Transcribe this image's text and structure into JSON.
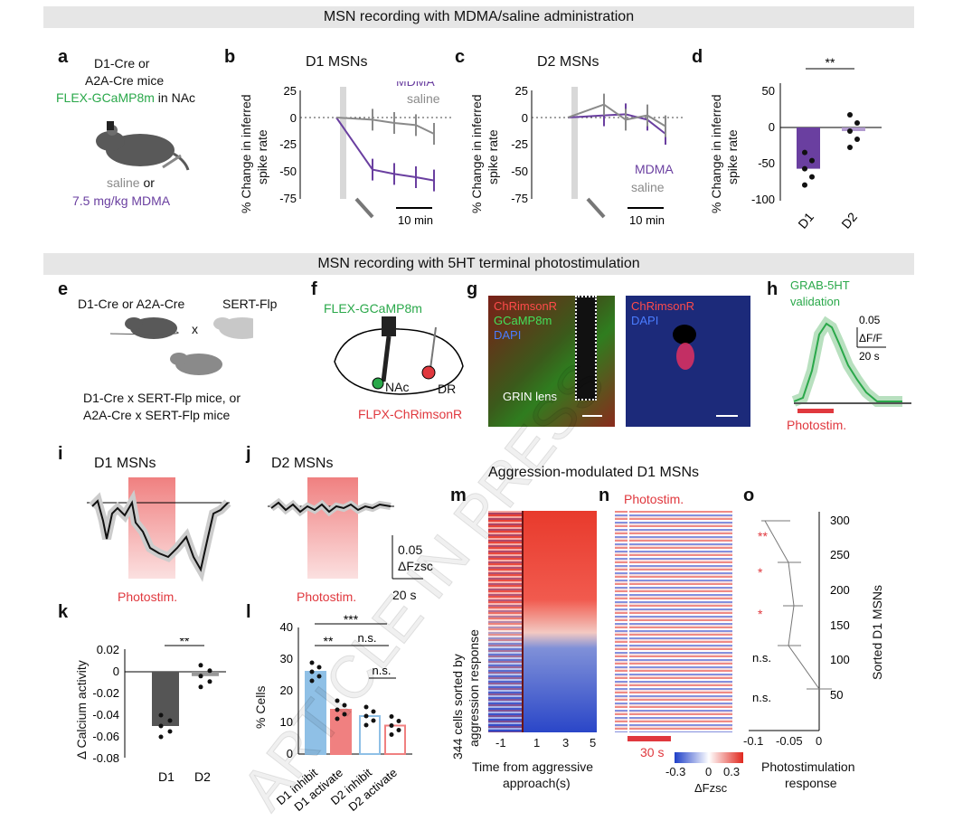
{
  "banners": {
    "top": "MSN recording with MDMA/saline administration",
    "middle": "MSN recording with 5HT terminal photostimulation"
  },
  "panel_letters": [
    "a",
    "b",
    "c",
    "d",
    "e",
    "f",
    "g",
    "h",
    "i",
    "j",
    "k",
    "l",
    "m",
    "n",
    "o"
  ],
  "panel_a": {
    "line1": "D1-Cre or",
    "line2": "A2A-Cre mice",
    "virus": "FLEX-GCaMP8m",
    "virus_suffix": " in NAc",
    "saline": "saline",
    "or": " or",
    "mdma_dose": "7.5 mg/kg MDMA"
  },
  "panel_b": {
    "title": "D1 MSNs",
    "ylabel1": "% Change in inferred",
    "ylabel2": "spike rate",
    "yticks": [
      "25",
      "0",
      "-25",
      "-50",
      "-75"
    ],
    "legend_mdma": "MDMA",
    "legend_saline": "saline",
    "scalebar": "10 min"
  },
  "panel_c": {
    "title": "D2 MSNs",
    "ylabel1": "% Change in inferred",
    "ylabel2": "spike rate",
    "yticks": [
      "25",
      "0",
      "-25",
      "-50",
      "-75"
    ],
    "legend_mdma": "MDMA",
    "legend_saline": "saline",
    "scalebar": "10 min"
  },
  "panel_d": {
    "ylabel1": "% Change in inferred",
    "ylabel2": "spike rate",
    "yticks": [
      "50",
      "0",
      "-50",
      "-100"
    ],
    "xticks": [
      "D1",
      "D2"
    ],
    "sig": "**"
  },
  "panel_e": {
    "left": "D1-Cre or A2A-Cre",
    "right": "SERT-Flp",
    "cross": "x",
    "cap1": "D1-Cre x SERT-Flp mice, or",
    "cap2": "A2A-Cre x SERT-Flp mice"
  },
  "panel_f": {
    "virus_top": "FLEX-GCaMP8m",
    "nac": "NAc",
    "dr": "DR",
    "virus_bottom": "FLPX-ChRimsonR"
  },
  "panel_g": {
    "left_l1": "ChRimsonR",
    "left_l2": "GCaMP8m",
    "left_l3": "DAPI",
    "grin": "GRIN lens",
    "right_l1": "ChRimsonR",
    "right_l2": "DAPI"
  },
  "panel_h": {
    "title1": "GRAB-5HT",
    "title2": "validation",
    "scale_y": "0.05",
    "scale_y_unit": "ΔF/F",
    "scale_x": "20 s",
    "stim": "Photostim."
  },
  "panel_i": {
    "title": "D1 MSNs",
    "stim": "Photostim."
  },
  "panel_j": {
    "title": "D2 MSNs",
    "stim": "Photostim.",
    "scale_y": "0.05",
    "scale_y_unit": "ΔFzsc",
    "scale_x": "20 s"
  },
  "panel_k": {
    "ylabel": "Δ Calcium activity",
    "yticks": [
      "0.02",
      "0",
      "-0.02",
      "-0.04",
      "-0.06",
      "-0.08"
    ],
    "xticks": [
      "D1",
      "D2"
    ],
    "sig": "**"
  },
  "panel_l": {
    "ylabel": "% Cells",
    "yticks": [
      "40",
      "30",
      "20",
      "10",
      "0"
    ],
    "xticks": [
      "D1 inhibit",
      "D1 activate",
      "D2 inhibit",
      "D2 activate"
    ],
    "sig1": "***",
    "sig2": "**",
    "sig3": "n.s.",
    "sig4": "n.s."
  },
  "heatmap_title": "Aggression-modulated D1 MSNs",
  "panel_m": {
    "ylabel1": "344 cells sorted by",
    "ylabel2": "aggression response",
    "xticks": [
      "-1",
      "1",
      "3",
      "5"
    ],
    "xlabel1": "Time from aggressive",
    "xlabel2": "approach(s)"
  },
  "panel_n": {
    "stim": "Photostim.",
    "scale": "30 s",
    "cbar_ticks": [
      "-0.3",
      "0",
      "0.3"
    ],
    "cbar_label": "ΔFzsc"
  },
  "panel_o": {
    "yticks": [
      "300",
      "250",
      "200",
      "150",
      "100",
      "50"
    ],
    "ylabel": "Sorted D1 MSNs",
    "xticks": [
      "-0.1",
      "-0.05",
      "0"
    ],
    "xlabel1": "Photostimulation",
    "xlabel2": "response",
    "sig": [
      "**",
      "*",
      "*",
      "n.s.",
      "n.s."
    ]
  },
  "watermark": "ARTICLE IN PRESS",
  "colors": {
    "mdma": "#6a3fa0",
    "saline": "#8a8a8a",
    "gcamp": "#2aa84a",
    "chrimson": "#e0383e",
    "d1bar": "#8fc0e6",
    "d2bar": "#f08080"
  },
  "chart_data": [
    {
      "panel": "b",
      "type": "line",
      "title": "D1 MSNs",
      "ylabel": "% Change in inferred spike rate",
      "ylim": [
        -75,
        25
      ],
      "series": [
        {
          "name": "MDMA",
          "values": [
            0,
            -48,
            -52,
            -55,
            -58
          ]
        },
        {
          "name": "saline",
          "values": [
            0,
            -2,
            -5,
            -7,
            -15
          ]
        }
      ]
    },
    {
      "panel": "c",
      "type": "line",
      "title": "D2 MSNs",
      "ylabel": "% Change in inferred spike rate",
      "ylim": [
        -75,
        25
      ],
      "series": [
        {
          "name": "MDMA",
          "values": [
            0,
            2,
            3,
            -2,
            -15
          ]
        },
        {
          "name": "saline",
          "values": [
            0,
            12,
            -2,
            2,
            -8
          ]
        }
      ]
    },
    {
      "panel": "d",
      "type": "bar",
      "categories": [
        "D1",
        "D2"
      ],
      "values": [
        -57,
        -5
      ],
      "ylabel": "% Change in inferred spike rate",
      "ylim": [
        -100,
        50
      ]
    },
    {
      "panel": "k",
      "type": "bar",
      "categories": [
        "D1",
        "D2"
      ],
      "values": [
        -0.05,
        -0.004
      ],
      "ylabel": "Δ Calcium activity",
      "ylim": [
        -0.08,
        0.02
      ]
    },
    {
      "panel": "l",
      "type": "bar",
      "categories": [
        "D1 inhibit",
        "D1 activate",
        "D2 inhibit",
        "D2 activate"
      ],
      "values": [
        26,
        14,
        12,
        9
      ],
      "ylabel": "% Cells",
      "ylim": [
        0,
        40
      ]
    }
  ]
}
